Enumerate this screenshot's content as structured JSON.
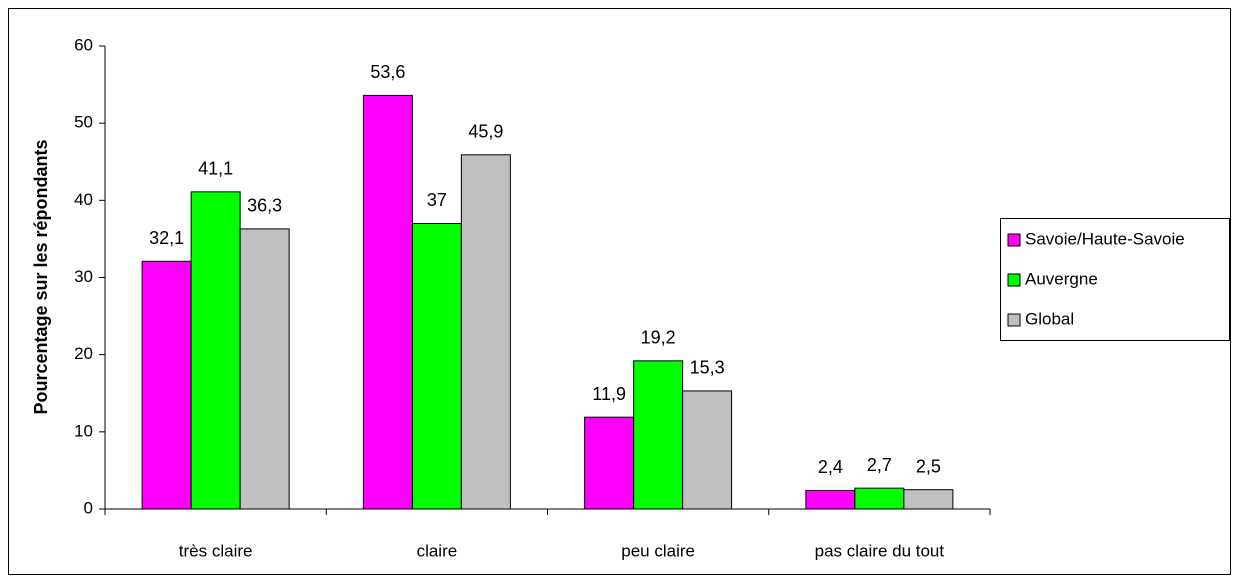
{
  "chart_data": {
    "type": "bar",
    "ylabel": "Pourcentage sur les répondants",
    "categories": [
      "très claire",
      "claire",
      "peu claire",
      "pas claire du tout"
    ],
    "series": [
      {
        "name": "Savoie/Haute-Savoie",
        "color": "#ff00ff",
        "values": [
          32.1,
          53.6,
          11.9,
          2.4
        ],
        "value_labels": [
          "32,1",
          "53,6",
          "11,9",
          "2,4"
        ]
      },
      {
        "name": "Auvergne",
        "color": "#00ff00",
        "values": [
          41.1,
          37,
          19.2,
          2.7
        ],
        "value_labels": [
          "41,1",
          "37",
          "19,2",
          "2,7"
        ]
      },
      {
        "name": "Global",
        "color": "#c0c0c0",
        "values": [
          36.3,
          45.9,
          15.3,
          2.5
        ],
        "value_labels": [
          "36,3",
          "45,9",
          "15,3",
          "2,5"
        ]
      }
    ],
    "ylim": [
      0,
      60
    ],
    "yticks": [
      0,
      10,
      20,
      30,
      40,
      50,
      60
    ],
    "grid": false,
    "legend": "right"
  }
}
